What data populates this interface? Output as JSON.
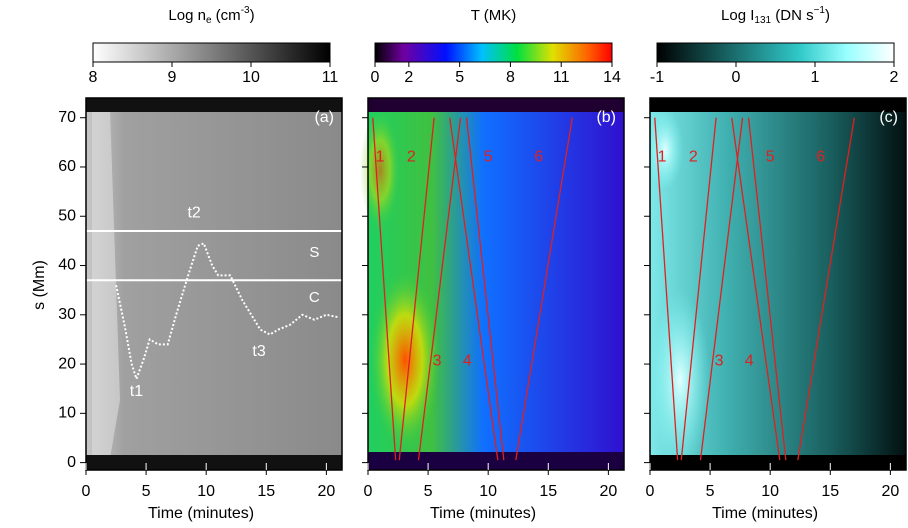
{
  "chart_data": [
    {
      "type": "heatmap",
      "panel_label": "(a)",
      "colorbar": {
        "title": [
          "Log n",
          "e",
          " (cm",
          "-3",
          ")"
        ],
        "lim": [
          8,
          11
        ],
        "ticks": [
          8,
          9,
          10,
          11
        ]
      },
      "x_label": "Time (minutes)",
      "y_label": "s (Mm)",
      "xlim": [
        0,
        21.3
      ],
      "xticks": [
        0,
        5,
        10,
        15,
        20
      ],
      "ylim": [
        -1.5,
        74
      ],
      "yticks": [
        0,
        10,
        20,
        30,
        40,
        50,
        60,
        70
      ],
      "hlines": [
        47,
        37
      ],
      "hline_labels": [
        "S",
        "C"
      ],
      "series": [
        {
          "color": "#ffffff",
          "x": [
            2.5,
            3.2,
            3.8,
            4.2,
            4.8,
            5.3,
            6,
            6.8,
            7.5,
            8.5,
            9.3,
            9.8,
            10.5,
            11,
            12,
            13,
            14.5,
            15.3,
            16,
            17,
            18,
            19,
            20,
            21
          ],
          "y": [
            36,
            28,
            20,
            17,
            21,
            25,
            24,
            24,
            30,
            38,
            44,
            44.5,
            40,
            38,
            38,
            33,
            27,
            26,
            27,
            28,
            30,
            29,
            30,
            29.5
          ]
        }
      ],
      "annotations": [
        "t1",
        "t2",
        "t3"
      ]
    },
    {
      "type": "heatmap",
      "panel_label": "(b)",
      "colorbar": {
        "title": [
          "T (MK)"
        ],
        "lim": [
          0,
          14
        ],
        "ticks": [
          0,
          2,
          5,
          8,
          11,
          14
        ]
      },
      "x_label": "Time (minutes)",
      "xlim": [
        0,
        21.3
      ],
      "xticks": [
        0,
        5,
        10,
        15,
        20
      ],
      "ylim": [
        -1.5,
        74
      ],
      "yticks": [
        0,
        10,
        20,
        30,
        40,
        50,
        60,
        70
      ],
      "series": [
        {
          "name": "1",
          "color": "#e02020",
          "x": [
            0.4,
            2.3
          ],
          "y": [
            70,
            0.5
          ]
        },
        {
          "name": "2",
          "color": "#e02020",
          "x": [
            2.6,
            5.5
          ],
          "y": [
            0.5,
            70
          ]
        },
        {
          "name": "3",
          "color": "#e02020",
          "x": [
            4.2,
            7.7
          ],
          "y": [
            0.5,
            70
          ]
        },
        {
          "name": "4",
          "color": "#e02020",
          "x": [
            6.8,
            10.8
          ],
          "y": [
            70,
            0.5
          ]
        },
        {
          "name": "5",
          "color": "#e02020",
          "x": [
            8.2,
            11.3
          ],
          "y": [
            70,
            0.5
          ]
        },
        {
          "name": "6",
          "color": "#e02020",
          "x": [
            12.3,
            17
          ],
          "y": [
            0.5,
            70
          ]
        }
      ]
    },
    {
      "type": "heatmap",
      "panel_label": "(c)",
      "colorbar": {
        "title": [
          "Log I",
          "131",
          " (DN s",
          "−1",
          ")"
        ],
        "lim": [
          -1,
          2
        ],
        "ticks": [
          -1,
          0,
          1,
          2
        ]
      },
      "x_label": "Time (minutes)",
      "xlim": [
        0,
        21.3
      ],
      "xticks": [
        0,
        5,
        10,
        15,
        20
      ],
      "ylim": [
        -1.5,
        74
      ],
      "yticks": [
        0,
        10,
        20,
        30,
        40,
        50,
        60,
        70
      ],
      "series": [
        {
          "name": "1",
          "color": "#e02020",
          "x": [
            0.4,
            2.3
          ],
          "y": [
            70,
            0.5
          ]
        },
        {
          "name": "2",
          "color": "#e02020",
          "x": [
            2.6,
            5.5
          ],
          "y": [
            0.5,
            70
          ]
        },
        {
          "name": "3",
          "color": "#e02020",
          "x": [
            4.2,
            7.7
          ],
          "y": [
            0.5,
            70
          ]
        },
        {
          "name": "4",
          "color": "#e02020",
          "x": [
            6.8,
            10.8
          ],
          "y": [
            70,
            0.5
          ]
        },
        {
          "name": "5",
          "color": "#e02020",
          "x": [
            8.2,
            11.3
          ],
          "y": [
            70,
            0.5
          ]
        },
        {
          "name": "6",
          "color": "#e02020",
          "x": [
            12.3,
            17
          ],
          "y": [
            0.5,
            70
          ]
        }
      ]
    }
  ]
}
